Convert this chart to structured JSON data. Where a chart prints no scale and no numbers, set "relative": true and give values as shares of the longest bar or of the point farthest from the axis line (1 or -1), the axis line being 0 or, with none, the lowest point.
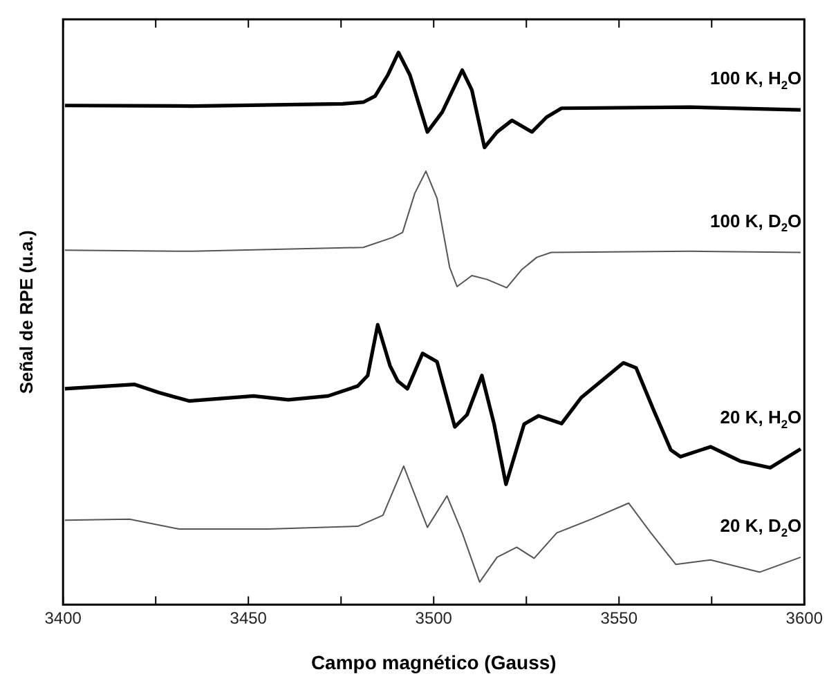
{
  "chart_data": {
    "type": "line",
    "xlabel": "Campo magnético (Gauss)",
    "ylabel": "Señal de RPE (u.a.)",
    "relative": true,
    "legend": false,
    "grid": false,
    "marker": "none",
    "line_style": "solid",
    "xlim": [
      3400,
      3600
    ],
    "xticks": [
      3400,
      {
        "value": 3425,
        "label": null
      },
      3450,
      {
        "value": 3475,
        "label": null
      },
      3500,
      {
        "value": 3525,
        "label": null
      },
      3550,
      {
        "value": 3575,
        "label": null
      },
      3600
    ],
    "series": [
      {
        "name": "100 K, H$_{2}$O",
        "color": "#000000",
        "x": [
          3400.5,
          3435,
          3475.4,
          3481,
          3484.2,
          3487.6,
          3490.5,
          3493.6,
          3498.3,
          3502.3,
          3507.7,
          3510.3,
          3513.7,
          3517.1,
          3521.1,
          3526.5,
          3530.5,
          3534.5,
          3569.3,
          3599
        ],
        "values": [
          0.904,
          0.903,
          0.907,
          0.91,
          0.921,
          0.959,
          1.0,
          0.959,
          0.856,
          0.892,
          0.968,
          0.932,
          0.828,
          0.856,
          0.877,
          0.856,
          0.883,
          0.899,
          0.901,
          0.896
        ]
      },
      {
        "name": "100 K, D$_{2}$O",
        "color": "#555555",
        "x": [
          3400.5,
          3435,
          3481,
          3488.9,
          3491.6,
          3494.9,
          3497.9,
          3500.9,
          3504.3,
          3506.3,
          3510.3,
          3514.4,
          3519.7,
          3523.8,
          3527.8,
          3531.7,
          3569.3,
          3599
        ],
        "values": [
          0.642,
          0.64,
          0.647,
          0.665,
          0.674,
          0.745,
          0.785,
          0.736,
          0.611,
          0.576,
          0.596,
          0.589,
          0.574,
          0.607,
          0.629,
          0.638,
          0.64,
          0.638
        ]
      },
      {
        "name": "20 K, H$_{2}$O",
        "color": "#000000",
        "x": [
          3400.5,
          3419.2,
          3425.9,
          3434,
          3451.4,
          3460.8,
          3471.5,
          3479.5,
          3482.2,
          3484.9,
          3488.2,
          3490.3,
          3492.9,
          3497,
          3500.9,
          3505.7,
          3509,
          3513,
          3516.3,
          3519.5,
          3524.4,
          3528.3,
          3534.5,
          3539.8,
          3551.2,
          3554.6,
          3559.3,
          3564,
          3566.6,
          3574.7,
          3582.7,
          3590.8,
          3599
        ],
        "values": [
          0.391,
          0.399,
          0.384,
          0.369,
          0.378,
          0.371,
          0.378,
          0.396,
          0.415,
          0.507,
          0.433,
          0.405,
          0.391,
          0.455,
          0.44,
          0.322,
          0.344,
          0.415,
          0.327,
          0.218,
          0.327,
          0.342,
          0.328,
          0.375,
          0.438,
          0.429,
          0.353,
          0.28,
          0.268,
          0.286,
          0.26,
          0.248,
          0.282
        ]
      },
      {
        "name": "20 K, D$_{2}$O",
        "color": "#555555",
        "x": [
          3400.5,
          3417.9,
          3431.3,
          3455.4,
          3479.5,
          3486.3,
          3491.9,
          3498.3,
          3503.6,
          3507.7,
          3512.4,
          3517.1,
          3522.4,
          3527.1,
          3533.2,
          3542.6,
          3552.6,
          3558.6,
          3565.3,
          3574.7,
          3588,
          3599
        ],
        "values": [
          0.153,
          0.155,
          0.137,
          0.137,
          0.142,
          0.162,
          0.251,
          0.14,
          0.197,
          0.13,
          0.041,
          0.086,
          0.104,
          0.084,
          0.13,
          0.155,
          0.184,
          0.13,
          0.073,
          0.081,
          0.059,
          0.086
        ]
      }
    ]
  }
}
